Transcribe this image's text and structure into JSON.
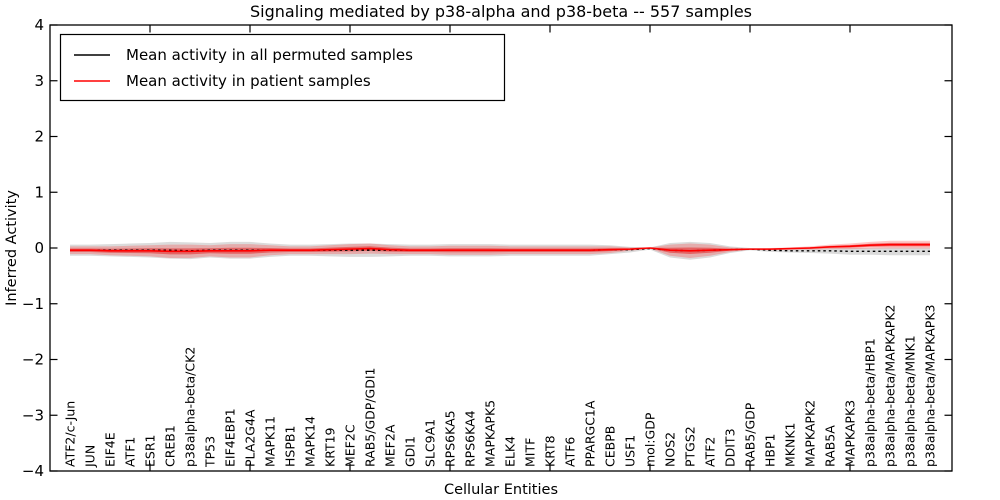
{
  "figure": {
    "title": "Signaling mediated by p38-alpha and p38-beta -- 557 samples",
    "xlabel": "Cellular Entities",
    "ylabel": "Inferred Activity",
    "background_color": "#ffffff",
    "frame_color": "#000000"
  },
  "legend": {
    "position": "upper left",
    "items": [
      {
        "label": "Mean activity in all permuted samples",
        "color": "#000000"
      },
      {
        "label": "Mean activity in patient samples",
        "color": "#ff0000"
      }
    ]
  },
  "axes": {
    "y_tick_labels": [
      "4",
      "3",
      "2",
      "1",
      "0",
      "−1",
      "−2",
      "−3",
      "−4"
    ],
    "y_tick_values": [
      4,
      3,
      2,
      1,
      0,
      -1,
      -2,
      -3,
      -4
    ],
    "tick_direction": "in"
  },
  "chart_data": {
    "type": "line",
    "title": "Signaling mediated by p38-alpha and p38-beta -- 557 samples",
    "xlabel": "Cellular Entities",
    "ylabel": "Inferred Activity",
    "ylim": [
      -4,
      4
    ],
    "grid": false,
    "legend_position": "upper left",
    "x_tick_interval": 5,
    "categories": [
      "ATF2/c-Jun",
      "JUN",
      "EIF4E",
      "ATF1",
      "ESR1",
      "CREB1",
      "p38alpha-beta/CK2",
      "TP53",
      "EIF4EBP1",
      "PLA2G4A",
      "MAPK11",
      "HSPB1",
      "MAPK14",
      "KRT19",
      "MEF2C",
      "RAB5/GDP/GDI1",
      "MEF2A",
      "GDI1",
      "SLC9A1",
      "RPS6KA5",
      "RPS6KA4",
      "MAPKAPK5",
      "ELK4",
      "MITF",
      "KRT8",
      "ATF6",
      "PPARGC1A",
      "CEBPB",
      "USF1",
      "mol:GDP",
      "NOS2",
      "PTGS2",
      "ATF2",
      "DDIT3",
      "RAB5/GDP",
      "HBP1",
      "MKNK1",
      "MAPKAPK2",
      "RAB5A",
      "MAPKAPK3",
      "p38alpha-beta/HBP1",
      "p38alpha-beta/MAPKAPK2",
      "p38alpha-beta/MNK1",
      "p38alpha-beta/MAPKAPK3"
    ],
    "series": [
      {
        "name": "Mean activity in all permuted samples",
        "style": "dashed",
        "color": "#000000",
        "values": [
          -0.04,
          -0.04,
          -0.04,
          -0.04,
          -0.04,
          -0.04,
          -0.05,
          -0.04,
          -0.04,
          -0.04,
          -0.04,
          -0.04,
          -0.04,
          -0.04,
          -0.04,
          -0.04,
          -0.04,
          -0.04,
          -0.04,
          -0.04,
          -0.04,
          -0.04,
          -0.04,
          -0.04,
          -0.04,
          -0.04,
          -0.04,
          -0.03,
          -0.03,
          -0.01,
          -0.04,
          -0.05,
          -0.04,
          -0.03,
          -0.02,
          -0.04,
          -0.05,
          -0.05,
          -0.05,
          -0.06,
          -0.06,
          -0.06,
          -0.06,
          -0.06
        ]
      },
      {
        "name": "Mean activity in patient samples",
        "style": "solid",
        "color": "#ff0000",
        "values": [
          -0.04,
          -0.04,
          -0.05,
          -0.05,
          -0.05,
          -0.06,
          -0.06,
          -0.05,
          -0.05,
          -0.05,
          -0.04,
          -0.04,
          -0.04,
          -0.03,
          -0.02,
          -0.01,
          -0.03,
          -0.04,
          -0.04,
          -0.04,
          -0.04,
          -0.04,
          -0.04,
          -0.04,
          -0.04,
          -0.04,
          -0.04,
          -0.03,
          -0.02,
          0.0,
          -0.04,
          -0.05,
          -0.04,
          -0.03,
          -0.02,
          -0.02,
          -0.01,
          0.0,
          0.02,
          0.03,
          0.05,
          0.06,
          0.06,
          0.06
        ]
      }
    ],
    "bands": [
      {
        "name": "std band of permuted samples",
        "center_series": 0,
        "color": "rgba(110,110,110,0.25)",
        "half_widths": [
          0.1,
          0.1,
          0.11,
          0.12,
          0.13,
          0.15,
          0.15,
          0.13,
          0.15,
          0.15,
          0.12,
          0.1,
          0.1,
          0.11,
          0.12,
          0.12,
          0.11,
          0.1,
          0.1,
          0.11,
          0.11,
          0.11,
          0.1,
          0.1,
          0.1,
          0.1,
          0.1,
          0.08,
          0.05,
          0.02,
          0.13,
          0.16,
          0.13,
          0.06,
          0.02,
          0.03,
          0.03,
          0.04,
          0.05,
          0.06,
          0.06,
          0.07,
          0.07,
          0.07
        ]
      },
      {
        "name": "std band of patient samples",
        "center_series": 1,
        "color": "rgba(255,30,30,0.25)",
        "half_widths": [
          0.07,
          0.07,
          0.08,
          0.09,
          0.1,
          0.12,
          0.12,
          0.1,
          0.12,
          0.12,
          0.09,
          0.07,
          0.07,
          0.08,
          0.09,
          0.09,
          0.08,
          0.07,
          0.07,
          0.08,
          0.08,
          0.08,
          0.07,
          0.07,
          0.07,
          0.07,
          0.07,
          0.06,
          0.03,
          0.01,
          0.1,
          0.13,
          0.1,
          0.04,
          0.01,
          0.02,
          0.02,
          0.03,
          0.04,
          0.05,
          0.06,
          0.07,
          0.07,
          0.07
        ]
      },
      {
        "name": "inner band of patient samples",
        "center_series": 1,
        "color": "rgba(230,25,25,0.50)",
        "scale": 0.45,
        "half_widths": [
          0.07,
          0.07,
          0.08,
          0.09,
          0.1,
          0.12,
          0.12,
          0.1,
          0.12,
          0.12,
          0.09,
          0.07,
          0.07,
          0.08,
          0.09,
          0.09,
          0.08,
          0.07,
          0.07,
          0.08,
          0.08,
          0.08,
          0.07,
          0.07,
          0.07,
          0.07,
          0.07,
          0.06,
          0.03,
          0.01,
          0.1,
          0.13,
          0.1,
          0.04,
          0.01,
          0.02,
          0.02,
          0.03,
          0.04,
          0.05,
          0.06,
          0.07,
          0.07,
          0.07
        ]
      }
    ]
  }
}
